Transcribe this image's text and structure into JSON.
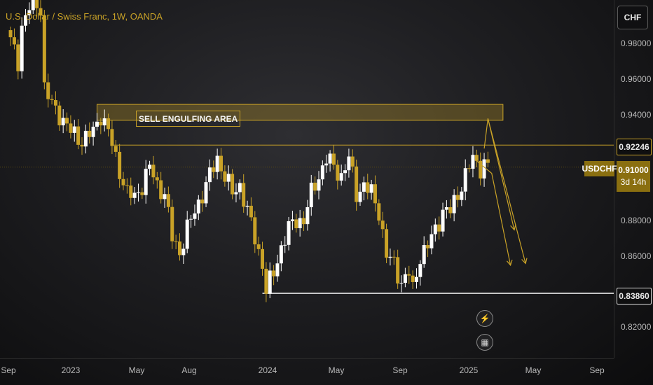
{
  "header": {
    "title": "U.S. Dollar / Swiss Franc, 1W, OANDA"
  },
  "currency_badge": "CHF",
  "symbol_tag": "USDCHF",
  "price_tag": {
    "price": "0.91000",
    "countdown": "3d 14h"
  },
  "resistance_badge": "0.92246",
  "support_badge": "0.83860",
  "zone_label": "SELL ENGULFING AREA",
  "icons": {
    "event_1": "lightning-icon",
    "event_2": "calendar-icon"
  },
  "colors": {
    "accent": "#c9a227",
    "candle_fill": "#c9a227",
    "candle_hollow": "#ffffff",
    "support_line": "#ffffff",
    "projection": "#c9a227"
  },
  "chart_data": {
    "type": "candlestick",
    "title": "U.S. Dollar / Swiss Franc, 1W, OANDA",
    "xlabel": "",
    "ylabel": "",
    "ylim": [
      0.805,
      1.0
    ],
    "y_ticks": [
      "0.98000",
      "0.96000",
      "0.94000",
      "0.88000",
      "0.86000",
      "0.82000"
    ],
    "y_tick_values": [
      0.98,
      0.96,
      0.94,
      0.88,
      0.86,
      0.82
    ],
    "x_ticks": [
      "Sep",
      "2023",
      "May",
      "Aug",
      "2024",
      "May",
      "Sep",
      "2025",
      "May",
      "Sep"
    ],
    "x_tick_dates": [
      "2022-09-01",
      "2023-01-01",
      "2023-05-01",
      "2023-08-01",
      "2024-01-01",
      "2024-05-01",
      "2024-09-01",
      "2025-01-01",
      "2025-05-01",
      "2025-09-01"
    ],
    "date_range": [
      "2022-09-01",
      "2025-09-15"
    ],
    "grid": false,
    "levels": {
      "resistance": 0.92246,
      "support": 0.8386
    },
    "zone": {
      "label": "SELL ENGULFING AREA",
      "from_date": "2023-02-13",
      "to_date": "2025-03-10",
      "high": 0.9455,
      "low": 0.9365
    },
    "projections": [
      [
        [
          "2025-02-03",
          0.9205
        ],
        [
          "2025-02-10",
          0.9375
        ],
        [
          "2025-04-21",
          0.8555
        ]
      ],
      [
        [
          "2025-02-10",
          0.9375
        ],
        [
          "2025-03-31",
          0.8745
        ]
      ],
      [
        [
          "2025-01-20",
          0.9135
        ],
        [
          "2025-02-17",
          0.9065
        ],
        [
          "2025-03-24",
          0.8545
        ]
      ]
    ],
    "weekly_path": [
      [
        "2022-09-05",
        0.981
      ],
      [
        "2022-09-19",
        0.97
      ],
      [
        "2022-09-26",
        0.99
      ],
      [
        "2022-10-17",
        1.005
      ],
      [
        "2022-10-31",
        1.0
      ],
      [
        "2022-11-07",
        0.955
      ],
      [
        "2022-11-21",
        0.945
      ],
      [
        "2022-12-05",
        0.94
      ],
      [
        "2022-12-26",
        0.93
      ],
      [
        "2023-01-16",
        0.925
      ],
      [
        "2023-02-06",
        0.93
      ],
      [
        "2023-02-20",
        0.94
      ],
      [
        "2023-03-06",
        0.93
      ],
      [
        "2023-03-20",
        0.915
      ],
      [
        "2023-04-10",
        0.895
      ],
      [
        "2023-04-24",
        0.893
      ],
      [
        "2023-05-08",
        0.9
      ],
      [
        "2023-05-22",
        0.91
      ],
      [
        "2023-06-05",
        0.9
      ],
      [
        "2023-06-19",
        0.895
      ],
      [
        "2023-07-03",
        0.87
      ],
      [
        "2023-07-17",
        0.862
      ],
      [
        "2023-07-31",
        0.875
      ],
      [
        "2023-08-14",
        0.885
      ],
      [
        "2023-08-28",
        0.895
      ],
      [
        "2023-09-11",
        0.905
      ],
      [
        "2023-09-25",
        0.915
      ],
      [
        "2023-10-09",
        0.905
      ],
      [
        "2023-10-23",
        0.895
      ],
      [
        "2023-11-06",
        0.9
      ],
      [
        "2023-11-20",
        0.885
      ],
      [
        "2023-12-04",
        0.87
      ],
      [
        "2023-12-18",
        0.855
      ],
      [
        "2023-12-25",
        0.84
      ],
      [
        "2024-01-08",
        0.85
      ],
      [
        "2024-01-22",
        0.865
      ],
      [
        "2024-02-05",
        0.875
      ],
      [
        "2024-02-19",
        0.88
      ],
      [
        "2024-03-04",
        0.88
      ],
      [
        "2024-03-18",
        0.895
      ],
      [
        "2024-04-01",
        0.905
      ],
      [
        "2024-04-15",
        0.915
      ],
      [
        "2024-04-29",
        0.91
      ],
      [
        "2024-05-13",
        0.905
      ],
      [
        "2024-05-27",
        0.915
      ],
      [
        "2024-06-10",
        0.895
      ],
      [
        "2024-06-24",
        0.9
      ],
      [
        "2024-07-08",
        0.895
      ],
      [
        "2024-07-22",
        0.885
      ],
      [
        "2024-08-05",
        0.86
      ],
      [
        "2024-08-19",
        0.855
      ],
      [
        "2024-09-02",
        0.845
      ],
      [
        "2024-09-16",
        0.85
      ],
      [
        "2024-09-23",
        0.84
      ],
      [
        "2024-10-07",
        0.86
      ],
      [
        "2024-10-21",
        0.865
      ],
      [
        "2024-11-04",
        0.875
      ],
      [
        "2024-11-18",
        0.885
      ],
      [
        "2024-12-02",
        0.885
      ],
      [
        "2024-12-16",
        0.895
      ],
      [
        "2024-12-30",
        0.905
      ],
      [
        "2025-01-13",
        0.915
      ],
      [
        "2025-01-27",
        0.91
      ],
      [
        "2025-02-03",
        0.912
      ],
      [
        "2025-02-10",
        0.91
      ]
    ]
  }
}
